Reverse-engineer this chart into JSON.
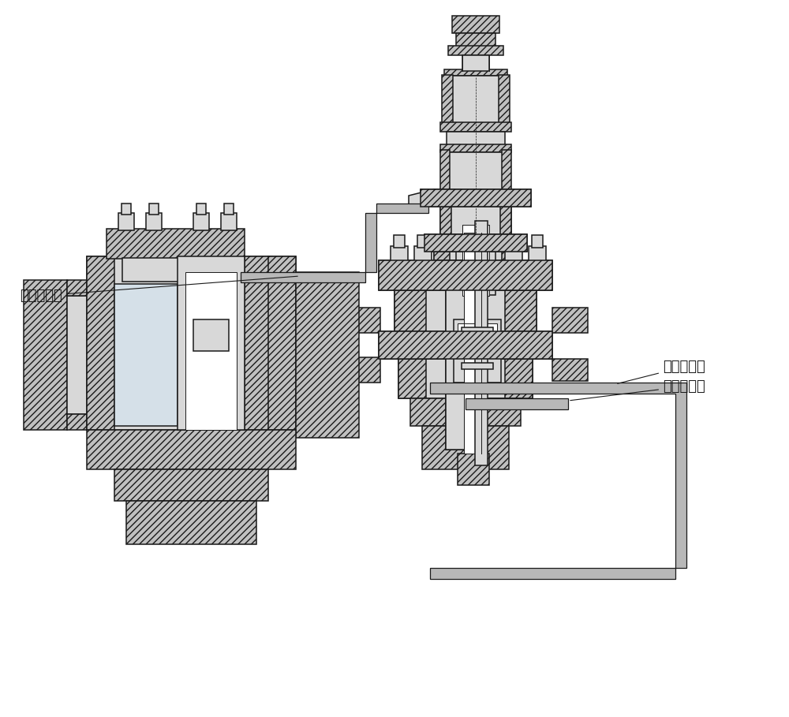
{
  "labels": {
    "qi_shi": "气室压力管",
    "chu_kou": "出口压力管",
    "ru_kou": "入口压力管"
  },
  "figsize": [
    10.0,
    9.09
  ],
  "dpi": 100,
  "bg": "#ffffff",
  "lc": "#1a1a1a",
  "gray": "#c0c0c0",
  "lgray": "#d8d8d8",
  "dgray": "#a8a8a8",
  "pipe_c": "#c8c8c8",
  "white": "#ffffff",
  "hatch": "////",
  "lw_main": 1.1,
  "lw_thin": 0.7
}
